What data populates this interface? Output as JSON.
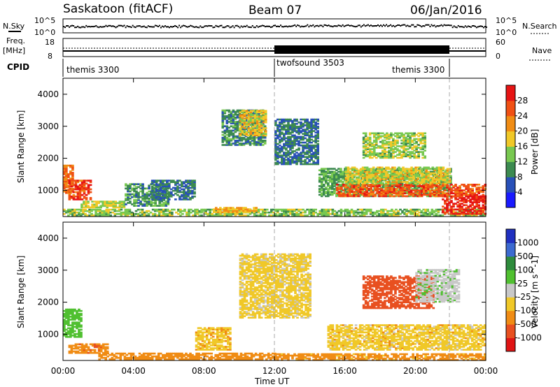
{
  "header": {
    "station": "Saskatoon (fitACF)",
    "beam": "Beam 07",
    "date": "06/Jan/2016"
  },
  "top_panels": {
    "nsky": {
      "left_label": "N.Sky",
      "right_label": "N.Search",
      "left_ticks": [
        "10^5",
        "10^0"
      ],
      "right_ticks": [
        "10^5",
        "10^0"
      ]
    },
    "freq": {
      "left_label_line1": "Freq.",
      "left_label_line2": "[MHz]",
      "right_label": "Nave",
      "left_ticks": [
        "18",
        "8"
      ],
      "right_ticks": [
        "60",
        "0"
      ]
    },
    "cpid": {
      "label": "CPID",
      "segments": [
        {
          "label": "themis 3300",
          "start_ut": "00:00",
          "end_ut": "12:00"
        },
        {
          "label": "twofsound 3503",
          "start_ut": "12:00",
          "end_ut": "22:00"
        },
        {
          "label": "themis 3300",
          "start_ut": "22:00",
          "end_ut": "24:00"
        }
      ]
    }
  },
  "power_panel": {
    "ylabel": "Slant Range [km]",
    "yticks": [
      "1000",
      "2000",
      "3000",
      "4000"
    ],
    "colorbar_label": "Power [dB]",
    "colorbar_ticks": [
      "4",
      "8",
      "12",
      "16",
      "20",
      "24",
      "28"
    ],
    "colorbar_colors": [
      "#1a1aff",
      "#2850b8",
      "#3c8a50",
      "#78c850",
      "#f0c828",
      "#f08c14",
      "#f05014",
      "#e61414"
    ]
  },
  "velocity_panel": {
    "ylabel": "Slant Range [km]",
    "yticks": [
      "1000",
      "2000",
      "3000",
      "4000"
    ],
    "colorbar_label": "Velocity [m s^-1]",
    "colorbar_ticks": [
      "1000",
      "500",
      "100",
      "25",
      "-25",
      "-100",
      "-500",
      "-1000"
    ],
    "colorbar_colors": [
      "#2030c0",
      "#3c6ad0",
      "#2e8b3c",
      "#50c030",
      "#c8c8c8",
      "#f0c828",
      "#f08c14",
      "#e85020",
      "#e01414"
    ]
  },
  "xaxis": {
    "label": "Time UT",
    "ticks": [
      "00:00",
      "04:00",
      "08:00",
      "12:00",
      "16:00",
      "20:00",
      "00:00"
    ]
  },
  "chart_data": {
    "type": "heatmap",
    "title": "Saskatoon (fitACF)  Beam 07  06/Jan/2016",
    "xlabel": "Time UT",
    "ylabel": "Slant Range [km]",
    "x_range_hours": [
      0,
      24
    ],
    "y_range_km": [
      180,
      4500
    ],
    "grid": false,
    "mode_change_markers_ut": [
      "12:00",
      "22:00"
    ],
    "power_scale_db": [
      0,
      32
    ],
    "velocity_scale_ms": [
      -1200,
      1200
    ],
    "power_regions": [
      {
        "t0": 0.0,
        "t1": 0.5,
        "r0": 900,
        "r1": 1800,
        "db": 24
      },
      {
        "t0": 0.3,
        "t1": 1.6,
        "r0": 700,
        "r1": 1300,
        "db": 27
      },
      {
        "t0": 1.0,
        "t1": 3.5,
        "r0": 450,
        "r1": 650,
        "db": 16
      },
      {
        "t0": 3.5,
        "t1": 6.0,
        "r0": 500,
        "r1": 1200,
        "db": 10
      },
      {
        "t0": 5.0,
        "t1": 7.5,
        "r0": 700,
        "r1": 1300,
        "db": 8
      },
      {
        "t0": 0.0,
        "t1": 24.0,
        "r0": 200,
        "r1": 420,
        "db": 14
      },
      {
        "t0": 8.5,
        "t1": 11.0,
        "r0": 300,
        "r1": 450,
        "db": 20
      },
      {
        "t0": 9.0,
        "t1": 11.5,
        "r0": 2400,
        "r1": 3500,
        "db": 10
      },
      {
        "t0": 10.0,
        "t1": 11.5,
        "r0": 2700,
        "r1": 3500,
        "db": 18
      },
      {
        "t0": 12.0,
        "t1": 14.5,
        "r0": 1800,
        "r1": 3200,
        "db": 8
      },
      {
        "t0": 14.5,
        "t1": 22.0,
        "r0": 800,
        "r1": 1700,
        "db": 12
      },
      {
        "t0": 15.5,
        "t1": 24.0,
        "r0": 800,
        "r1": 1200,
        "db": 26
      },
      {
        "t0": 16.0,
        "t1": 22.0,
        "r0": 1200,
        "r1": 1700,
        "db": 17
      },
      {
        "t0": 17.0,
        "t1": 20.5,
        "r0": 2000,
        "r1": 2800,
        "db": 15
      },
      {
        "t0": 21.5,
        "t1": 24.0,
        "r0": 250,
        "r1": 800,
        "db": 29
      }
    ],
    "velocity_regions": [
      {
        "t0": 0.0,
        "t1": 1.0,
        "r0": 900,
        "r1": 1800,
        "v": 300
      },
      {
        "t0": 0.3,
        "t1": 2.5,
        "r0": 400,
        "r1": 700,
        "v": -80
      },
      {
        "t0": 2.0,
        "t1": 8.0,
        "r0": 200,
        "r1": 400,
        "v": -60
      },
      {
        "t0": 7.5,
        "t1": 9.5,
        "r0": 500,
        "r1": 1200,
        "v": -10
      },
      {
        "t0": 8.0,
        "t1": 12.0,
        "r0": 200,
        "r1": 400,
        "v": -60
      },
      {
        "t0": 10.0,
        "t1": 14.0,
        "r0": 1500,
        "r1": 3500,
        "v": 5
      },
      {
        "t0": 12.0,
        "t1": 24.0,
        "r0": 180,
        "r1": 400,
        "v": -50
      },
      {
        "t0": 15.0,
        "t1": 24.0,
        "r0": 500,
        "r1": 1300,
        "v": 0
      },
      {
        "t0": 17.0,
        "t1": 21.0,
        "r0": 1800,
        "r1": 2800,
        "v": -150
      },
      {
        "t0": 20.0,
        "t1": 22.5,
        "r0": 2000,
        "r1": 3000,
        "v": 80
      }
    ]
  }
}
